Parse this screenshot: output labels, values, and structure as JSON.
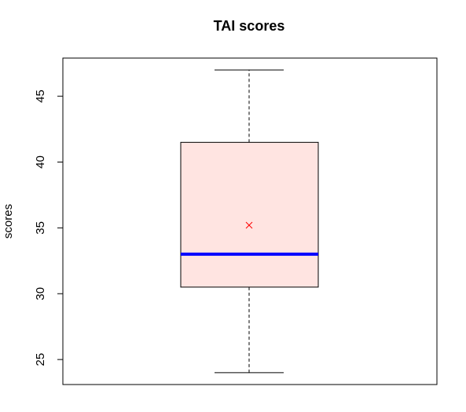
{
  "chart_data": {
    "type": "boxplot",
    "title": "TAI scores",
    "xlabel": "",
    "ylabel": "scores",
    "ylim": [
      23.1,
      47.9
    ],
    "yticks": [
      25,
      30,
      35,
      40,
      45
    ],
    "ytick_labels": [
      "25",
      "30",
      "35",
      "40",
      "45"
    ],
    "grid": false,
    "box": {
      "min": 24,
      "q1": 30.5,
      "median": 33,
      "q3": 41.5,
      "max": 47,
      "mean": 35.2
    },
    "colors": {
      "box_fill": "#ffe4e1",
      "median_line": "#0000ff",
      "mean_marker": "#ff0000",
      "outline": "#000000"
    }
  }
}
